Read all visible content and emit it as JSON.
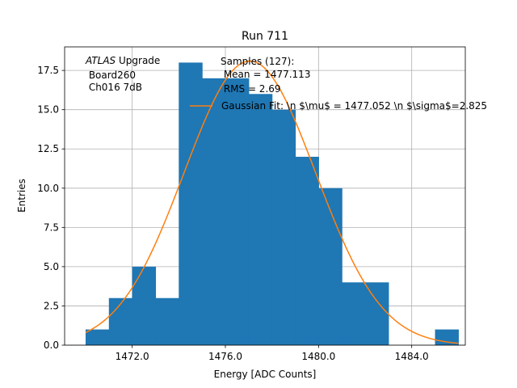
{
  "chart_data": {
    "type": "bar",
    "title": "Run 711",
    "xlabel": "Energy [ADC Counts]",
    "ylabel": "Entries",
    "xlim": [
      1469.1,
      1486.3
    ],
    "ylim": [
      0,
      19
    ],
    "grid": true,
    "xticks": [
      1472.0,
      1476.0,
      1480.0,
      1484.0
    ],
    "xtick_labels": [
      "1472.0",
      "1476.0",
      "1480.0",
      "1484.0"
    ],
    "yticks": [
      0.0,
      2.5,
      5.0,
      7.5,
      10.0,
      12.5,
      15.0,
      17.5
    ],
    "ytick_labels": [
      "0.0",
      "2.5",
      "5.0",
      "7.5",
      "10.0",
      "12.5",
      "15.0",
      "17.5"
    ],
    "histogram": {
      "name": "Samples (127)",
      "color": "#1f77b4",
      "bin_edges": [
        1470.0,
        1471.0,
        1472.0,
        1473.0,
        1474.0,
        1475.0,
        1476.0,
        1477.0,
        1478.0,
        1479.0,
        1480.0,
        1481.0,
        1482.0,
        1483.0,
        1484.0,
        1485.0,
        1486.0
      ],
      "counts": [
        1,
        3,
        5,
        3,
        18,
        17,
        17,
        16,
        15,
        12,
        10,
        4,
        4,
        0,
        0,
        1
      ]
    },
    "fit": {
      "name": "Gaussian Fit",
      "color": "#ff7f0e",
      "mu": 1477.052,
      "sigma": 2.825,
      "amplitude": 18.1,
      "x_range": [
        1470.0,
        1486.0
      ]
    },
    "legend": {
      "placement": "top-center",
      "samples_title": "Samples (127):",
      "mean_line": " Mean = 1477.113",
      "rms_line": " RMS = 2.69",
      "fit_label": "Gaussian Fit: \\n $\\mu$ = 1477.052 \\n $\\sigma$=2.825"
    },
    "annotation": {
      "atlas": "ATLAS",
      "upgrade": " Upgrade",
      "board": " Board260",
      "channel": " Ch016 7dB"
    }
  }
}
